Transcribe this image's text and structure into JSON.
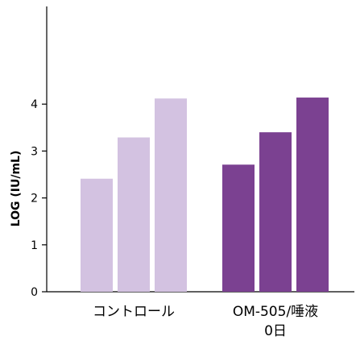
{
  "chart_data": {
    "type": "bar",
    "title": "",
    "xlabel": "",
    "ylabel": "LOG (IU/mL)",
    "ylim": [
      0,
      4.4
    ],
    "yticks": [
      "0",
      "1",
      "2",
      "3",
      "4"
    ],
    "grid": false,
    "legend": "none",
    "groups": [
      {
        "label_lines": [
          "コントロール"
        ],
        "values": [
          2.41,
          3.29,
          4.12
        ],
        "color": "#d3c2e1"
      },
      {
        "label_lines": [
          "OM-505/唾液",
          "0日"
        ],
        "values": [
          2.71,
          3.4,
          4.14
        ],
        "color": "#7b4191"
      }
    ]
  }
}
